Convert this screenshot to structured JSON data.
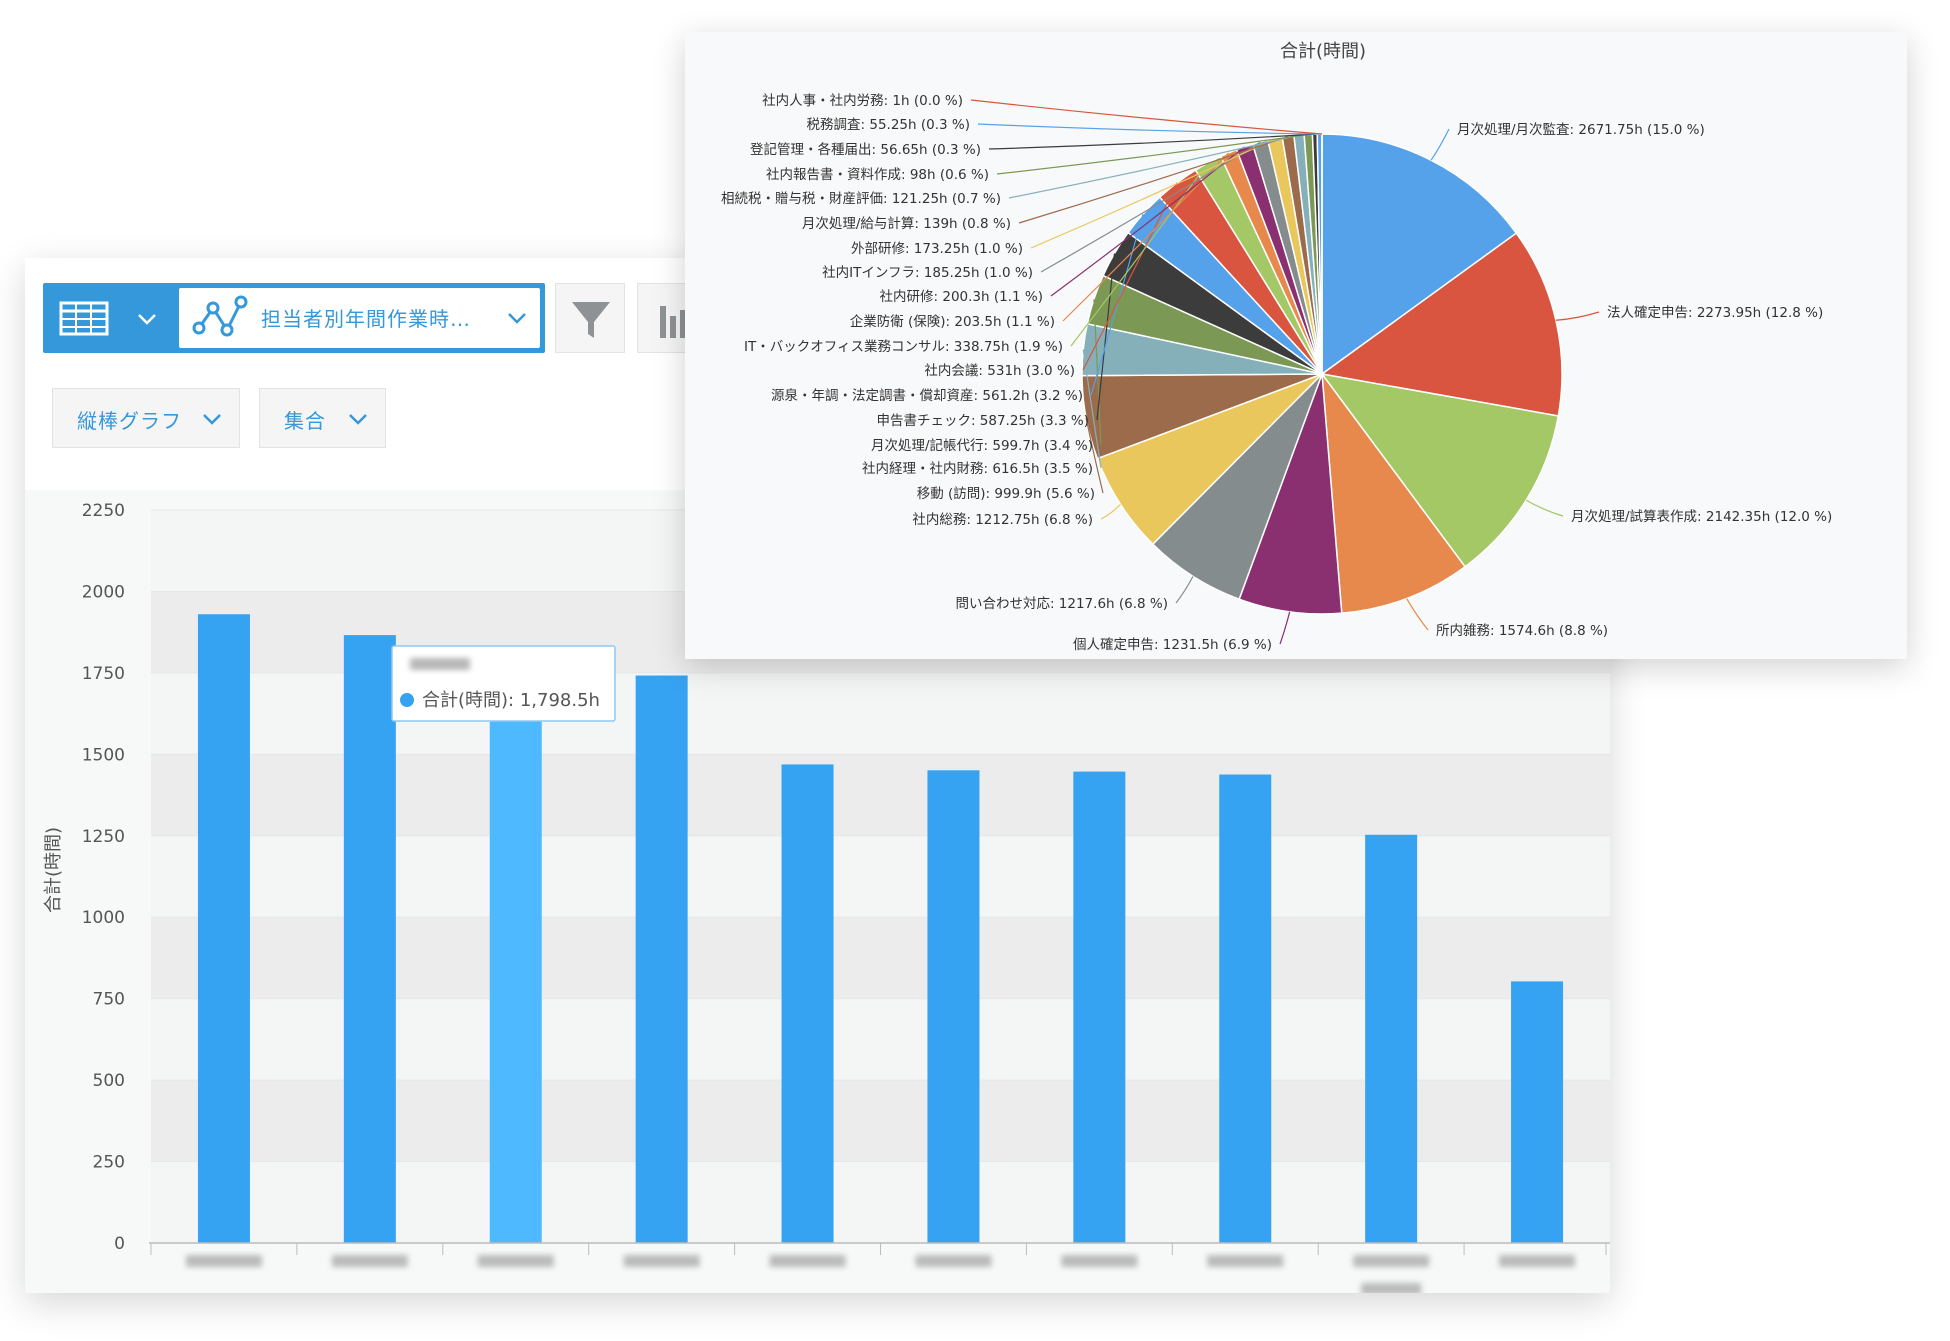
{
  "toolbar": {
    "report_name": "担当者別年間作業時…",
    "chart_type_label": "縦棒グラフ",
    "aggregate_label": "集合"
  },
  "tooltip": {
    "text": "合計(時間): 1,798.5h"
  },
  "colors": {
    "bar": "#36a3f2",
    "bar_highlight": "#4eb9ff",
    "accent": "#3498db"
  },
  "chart_data": [
    {
      "type": "bar",
      "ylabel": "合計(時間)",
      "ylim": [
        0,
        2250
      ],
      "yticks": [
        0,
        250,
        500,
        750,
        1000,
        1250,
        1500,
        1750,
        2000,
        2250
      ],
      "values": [
        1930,
        1866,
        1798.5,
        1742,
        1469,
        1451,
        1447,
        1438,
        1253,
        803
      ],
      "highlighted_index": 2,
      "categories_blurred": true,
      "grid": true
    },
    {
      "type": "pie",
      "title": "合計(時間)",
      "slices": [
        {
          "label": "月次処理/月次監査: 2671.75h (15.0 %)",
          "value": 2671.75,
          "color": "#55a1ea"
        },
        {
          "label": "法人確定申告: 2273.95h (12.8 %)",
          "value": 2273.95,
          "color": "#d9553f"
        },
        {
          "label": "月次処理/試算表作成: 2142.35h (12.0 %)",
          "value": 2142.35,
          "color": "#a3c865"
        },
        {
          "label": "所内雑務: 1574.6h (8.8 %)",
          "value": 1574.6,
          "color": "#e7894d"
        },
        {
          "label": "個人確定申告: 1231.5h (6.9 %)",
          "value": 1231.5,
          "color": "#8a2f6f"
        },
        {
          "label": "問い合わせ対応: 1217.6h (6.8 %)",
          "value": 1217.6,
          "color": "#858c8d"
        },
        {
          "label": "社内総務: 1212.75h (6.8 %)",
          "value": 1212.75,
          "color": "#eac75c"
        },
        {
          "label": "移動 (訪問): 999.9h (5.6 %)",
          "value": 999.9,
          "color": "#9c6b4c"
        },
        {
          "label": "社内経理・社内財務: 616.5h (3.5 %)",
          "value": 616.5,
          "color": "#85b0ba"
        },
        {
          "label": "月次処理/記帳代行: 599.7h (3.4 %)",
          "value": 599.7,
          "color": "#7c9855"
        },
        {
          "label": "申告書チェック: 587.25h (3.3 %)",
          "value": 587.25,
          "color": "#3c3c3c"
        },
        {
          "label": "源泉・年調・法定調書・償却資産: 561.2h (3.2 %)",
          "value": 561.2,
          "color": "#55a1ea"
        },
        {
          "label": "社内会議: 531h (3.0 %)",
          "value": 531,
          "color": "#d9553f"
        },
        {
          "label": "IT・バックオフィス業務コンサル: 338.75h (1.9 %)",
          "value": 338.75,
          "color": "#a3c865"
        },
        {
          "label": "企業防衛 (保険): 203.5h (1.1 %)",
          "value": 203.5,
          "color": "#e7894d"
        },
        {
          "label": "社内研修: 200.3h (1.1 %)",
          "value": 200.3,
          "color": "#8a2f6f"
        },
        {
          "label": "社内ITインフラ: 185.25h (1.0 %)",
          "value": 185.25,
          "color": "#858c8d"
        },
        {
          "label": "外部研修: 173.25h (1.0 %)",
          "value": 173.25,
          "color": "#eac75c"
        },
        {
          "label": "月次処理/給与計算: 139h (0.8 %)",
          "value": 139,
          "color": "#9c6b4c"
        },
        {
          "label": "相続税・贈与税・財産評価: 121.25h (0.7 %)",
          "value": 121.25,
          "color": "#85b0ba"
        },
        {
          "label": "社内報告書・資料作成: 98h (0.6 %)",
          "value": 98,
          "color": "#7c9855"
        },
        {
          "label": "登記管理・各種届出: 56.65h (0.3 %)",
          "value": 56.65,
          "color": "#3c3c3c"
        },
        {
          "label": "税務調査: 55.25h (0.3 %)",
          "value": 55.25,
          "color": "#55a1ea"
        },
        {
          "label": "社内人事・社内労務: 1h (0.0 %)",
          "value": 1,
          "color": "#d9553f"
        }
      ]
    }
  ]
}
